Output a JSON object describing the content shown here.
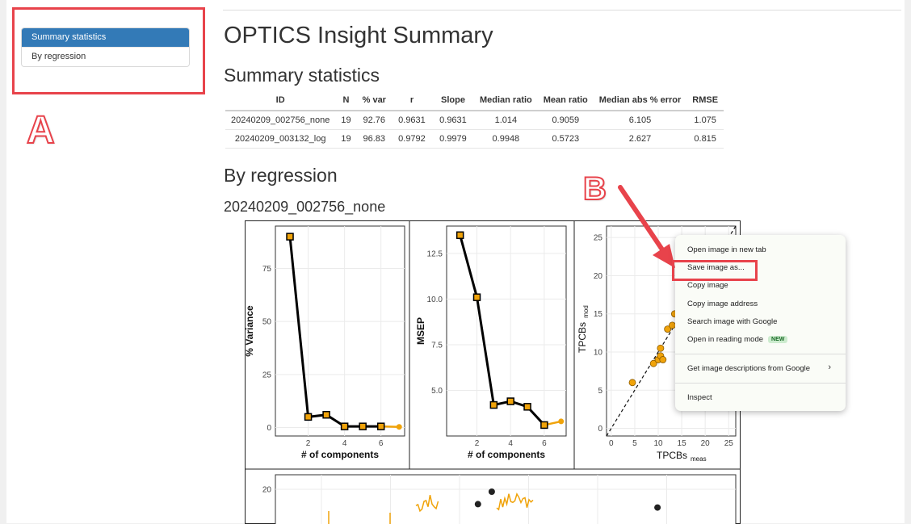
{
  "sidebar": {
    "items": [
      {
        "label": "Summary statistics",
        "active": true
      },
      {
        "label": "By regression",
        "active": false
      }
    ]
  },
  "annotations": {
    "label_a": "A",
    "label_b": "B",
    "color": "#e8434b"
  },
  "page": {
    "title": "OPTICS Insight Summary",
    "section_summary": "Summary statistics",
    "section_regression": "By regression",
    "regression_id": "20240209_002756_none"
  },
  "stats_table": {
    "headers": [
      "ID",
      "N",
      "% var",
      "r",
      "Slope",
      "Median ratio",
      "Mean ratio",
      "Median abs % error",
      "RMSE"
    ],
    "rows": [
      [
        "20240209_002756_none",
        "19",
        "92.76",
        "0.9631",
        "0.9631",
        "1.014",
        "0.9059",
        "6.105",
        "1.075"
      ],
      [
        "20240209_003132_log",
        "19",
        "96.83",
        "0.9792",
        "0.9979",
        "0.9948",
        "0.5723",
        "2.627",
        "0.815"
      ]
    ]
  },
  "context_menu": {
    "items": [
      "Open image in new tab",
      "Save image as...",
      "Copy image",
      "Copy image address",
      "Search image with Google",
      "Open in reading mode",
      "Get image descriptions from Google",
      "Inspect"
    ],
    "new_badge": "NEW",
    "chevron": "›"
  },
  "chart_data": [
    {
      "type": "line",
      "xlabel": "# of components",
      "ylabel": "% Variance",
      "x": [
        1,
        2,
        3,
        4,
        5,
        6,
        7
      ],
      "values": [
        90,
        5,
        6,
        0.5,
        0.5,
        0.5,
        0.3
      ],
      "xticks": [
        "2",
        "4",
        "6"
      ],
      "yticks": [
        "0",
        "25",
        "50",
        "75"
      ],
      "xlim": [
        0.2,
        7.3
      ],
      "ylim": [
        -4,
        95
      ],
      "grid": true,
      "colors": {
        "line": "#000000",
        "marker": "#f0a30a",
        "extension": "#f0a30a"
      }
    },
    {
      "type": "line",
      "xlabel": "# of components",
      "ylabel": "MSEP",
      "x": [
        1,
        2,
        3,
        4,
        5,
        6,
        7
      ],
      "values": [
        13.5,
        10.1,
        4.2,
        4.4,
        4.1,
        3.1,
        3.3
      ],
      "xticks": [
        "2",
        "4",
        "6"
      ],
      "yticks": [
        "5.0",
        "7.5",
        "10.0",
        "12.5"
      ],
      "xlim": [
        0.2,
        7.3
      ],
      "ylim": [
        2.5,
        14
      ],
      "grid": true,
      "colors": {
        "line": "#000000",
        "marker": "#f0a30a",
        "extension": "#f0a30a"
      }
    },
    {
      "type": "scatter",
      "xlabel": "TPCBs",
      "xlabel_sub": "meas",
      "ylabel": "TPCBs",
      "ylabel_sub": "mod",
      "x": [
        4.5,
        9,
        10,
        10.5,
        10.5,
        11,
        12,
        13,
        13.5
      ],
      "y": [
        6,
        8.5,
        9,
        9.5,
        10.5,
        9,
        13,
        13.5,
        15
      ],
      "xticks": [
        "0",
        "5",
        "10",
        "15",
        "20",
        "25"
      ],
      "yticks": [
        "0",
        "5",
        "10",
        "15",
        "20",
        "25"
      ],
      "xlim": [
        -1,
        26.5
      ],
      "ylim": [
        -1,
        26.5
      ],
      "reference_line": "1:1 dashed",
      "grid": true,
      "colors": {
        "point": "#f0a30a"
      }
    },
    {
      "type": "line",
      "yticks": [
        "20"
      ],
      "points": [
        [
          0.47,
          0.3
        ],
        [
          0.44,
          0.52
        ],
        [
          0.83,
          0.58
        ]
      ],
      "colors": {
        "line": "#f0a30a",
        "point": "#222222"
      }
    }
  ]
}
